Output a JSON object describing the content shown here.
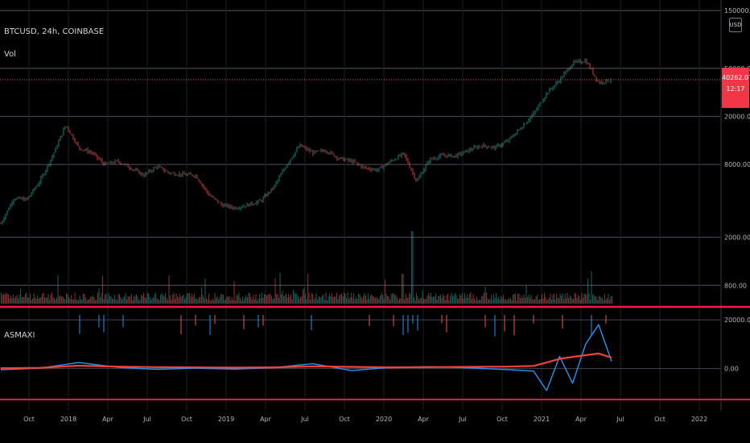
{
  "header": {
    "symbol": "BTCUSD, 24h, COINBASE",
    "volume_label": "Vol",
    "indicator_label": "ASMAXI"
  },
  "price_axis": {
    "currency": "USD",
    "ticks": [
      {
        "label": "150000.00",
        "value": 150000
      },
      {
        "label": "50000.00",
        "value": 50000
      },
      {
        "label": "20000.00",
        "value": 20000
      },
      {
        "label": "8000.00",
        "value": 8000
      },
      {
        "label": "2000.00",
        "value": 2000
      },
      {
        "label": "800.00",
        "value": 800
      }
    ],
    "last_price": "40262.07",
    "countdown": "12:17"
  },
  "indicator_axis": {
    "ticks": [
      {
        "label": "20000.00",
        "value": 20000
      },
      {
        "label": "0.00",
        "value": 0
      }
    ]
  },
  "colors": {
    "background": "#000000",
    "up": "#26a69a",
    "down": "#ef5350",
    "indicator_blue": "#2196f3",
    "indicator_red": "#f44336",
    "separator": "#ff1744",
    "grid": "#2a2e39",
    "price_tag": "#f23645"
  },
  "chart_data": {
    "type": "line",
    "scale": "log",
    "x_ticks": [
      "Oct",
      "2018",
      "Apr",
      "Jul",
      "Oct",
      "2019",
      "Apr",
      "Jul",
      "Oct",
      "2020",
      "Apr",
      "Jul",
      "Oct",
      "2021",
      "Apr",
      "Jul",
      "Oct",
      "2022"
    ],
    "price_series": {
      "x": [
        "2017-07",
        "2017-08",
        "2017-09",
        "2017-10",
        "2017-11",
        "2017-12",
        "2018-01",
        "2018-02",
        "2018-03",
        "2018-04",
        "2018-05",
        "2018-06",
        "2018-07",
        "2018-08",
        "2018-09",
        "2018-10",
        "2018-11",
        "2018-12",
        "2019-01",
        "2019-02",
        "2019-03",
        "2019-04",
        "2019-05",
        "2019-06",
        "2019-07",
        "2019-08",
        "2019-09",
        "2019-10",
        "2019-11",
        "2019-12",
        "2020-01",
        "2020-02",
        "2020-03",
        "2020-04",
        "2020-05",
        "2020-06",
        "2020-07",
        "2020-08",
        "2020-09",
        "2020-10",
        "2020-11",
        "2020-12",
        "2021-01",
        "2021-02",
        "2021-03",
        "2021-04",
        "2021-05",
        "2021-06"
      ],
      "close": [
        2600,
        4200,
        4100,
        5800,
        9500,
        17000,
        11000,
        10000,
        8000,
        8500,
        7500,
        6500,
        7700,
        6800,
        6600,
        6500,
        4500,
        3700,
        3500,
        3700,
        4000,
        5200,
        8000,
        11500,
        10000,
        10500,
        9000,
        8500,
        7500,
        7200,
        8500,
        9800,
        5800,
        8800,
        9500,
        9400,
        10500,
        11500,
        11000,
        12500,
        16000,
        21000,
        31000,
        40000,
        55000,
        58000,
        38000,
        40262
      ],
      "ylim": [
        600,
        170000
      ]
    },
    "indicator_series": [
      {
        "x": [
          "2017-07",
          "2017-10",
          "2018-01",
          "2018-04",
          "2018-07",
          "2018-10",
          "2019-01",
          "2019-04",
          "2019-07",
          "2019-10",
          "2020-01",
          "2020-04",
          "2020-07",
          "2020-10",
          "2020-12",
          "2021-01",
          "2021-02",
          "2021-03",
          "2021-04",
          "2021-05",
          "2021-06"
        ],
        "values": [
          -500,
          200,
          2500,
          500,
          -300,
          200,
          -200,
          400,
          2000,
          -800,
          500,
          800,
          300,
          -400,
          -1000,
          -9000,
          5000,
          -6000,
          10000,
          18000,
          3000
        ]
      },
      {
        "x": [
          "2017-07",
          "2017-10",
          "2018-01",
          "2018-04",
          "2018-07",
          "2018-10",
          "2019-01",
          "2019-04",
          "2019-07",
          "2019-10",
          "2020-01",
          "2020-04",
          "2020-07",
          "2020-10",
          "2020-12",
          "2021-01",
          "2021-02",
          "2021-03",
          "2021-04",
          "2021-05",
          "2021-06"
        ],
        "values": [
          200,
          300,
          1200,
          800,
          600,
          500,
          400,
          500,
          900,
          700,
          500,
          600,
          700,
          800,
          1100,
          2500,
          4000,
          4800,
          5500,
          6200,
          4500
        ]
      }
    ],
    "indicator_ylim": [
      -12000,
      23000
    ]
  }
}
